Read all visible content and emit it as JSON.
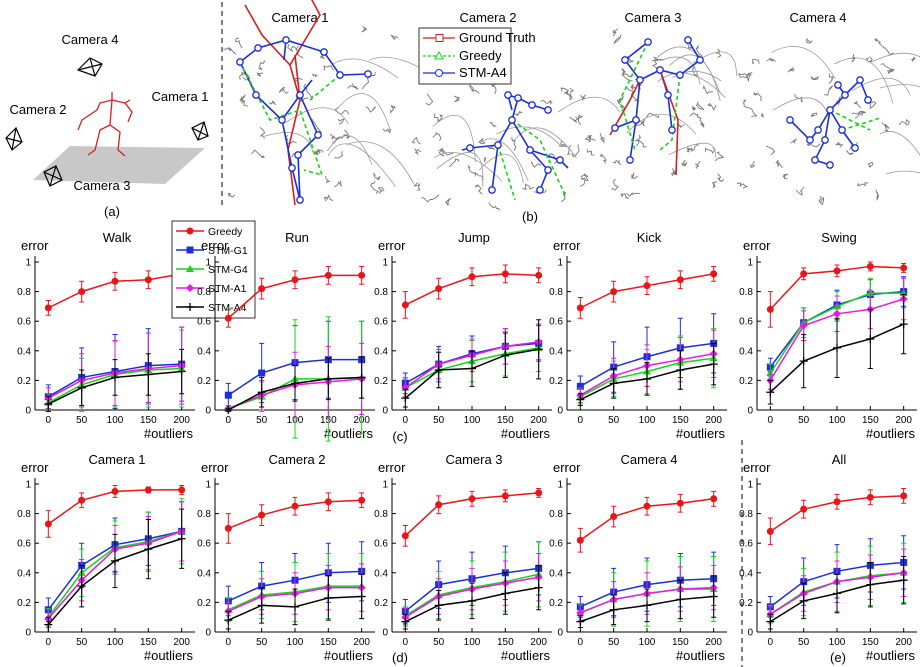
{
  "illustration": {
    "panel_a": {
      "cameras": [
        "Camera 4",
        "Camera 2",
        "Camera 1",
        "Camera 3"
      ],
      "label": "(a)"
    },
    "panel_b": {
      "titles": [
        "Camera 1",
        "Camera 2",
        "Camera 3",
        "Camera 4"
      ],
      "legend": [
        "Ground Truth",
        "Greedy",
        "STM-A4"
      ],
      "label": "(b)"
    }
  },
  "panel_labels": [
    "(c)",
    "(d)",
    "(e)"
  ],
  "chart_data": [
    {
      "type": "line",
      "title": "Walk",
      "ylabel": "error",
      "xlabel": "#outliers",
      "x": [
        0,
        50,
        100,
        150,
        200
      ],
      "xlim": [
        -20,
        220
      ],
      "ylim": [
        0,
        1
      ],
      "xticks": [
        0,
        50,
        100,
        150,
        200
      ],
      "yticks": [
        0,
        0.2,
        0.4,
        0.6,
        0.8,
        1
      ],
      "series": [
        {
          "name": "Greedy",
          "color": "#e8161b",
          "marker": "circle",
          "values": [
            0.69,
            0.8,
            0.87,
            0.88,
            0.92
          ],
          "errors": [
            0.05,
            0.07,
            0.06,
            0.06,
            0.06
          ]
        },
        {
          "name": "STM-G1",
          "color": "#1a2fd6",
          "marker": "square",
          "values": [
            0.09,
            0.22,
            0.26,
            0.3,
            0.31
          ],
          "errors": [
            0.08,
            0.2,
            0.25,
            0.25,
            0.25
          ]
        },
        {
          "name": "STM-G4",
          "color": "#17d417",
          "marker": "triangle",
          "values": [
            0.05,
            0.17,
            0.24,
            0.27,
            0.28
          ],
          "errors": [
            0.06,
            0.18,
            0.22,
            0.25,
            0.26
          ]
        },
        {
          "name": "STM-A1",
          "color": "#e619e6",
          "marker": "diamond",
          "values": [
            0.08,
            0.2,
            0.25,
            0.28,
            0.3
          ],
          "errors": [
            0.07,
            0.18,
            0.22,
            0.24,
            0.26
          ]
        },
        {
          "name": "STM-A4",
          "color": "#000000",
          "marker": "plus",
          "values": [
            0.04,
            0.15,
            0.22,
            0.24,
            0.26
          ],
          "errors": [
            0.05,
            0.12,
            0.12,
            0.14,
            0.15
          ]
        }
      ]
    },
    {
      "type": "line",
      "title": "Run",
      "ylabel": "error",
      "xlabel": "#outliers",
      "x": [
        0,
        50,
        100,
        150,
        200
      ],
      "xlim": [
        -20,
        220
      ],
      "ylim": [
        0,
        1
      ],
      "xticks": [
        0,
        50,
        100,
        150,
        200
      ],
      "yticks": [
        0,
        0.2,
        0.4,
        0.6,
        0.8,
        1
      ],
      "series": [
        {
          "values": [
            0.62,
            0.82,
            0.88,
            0.91,
            0.91
          ],
          "errors": [
            0.06,
            0.07,
            0.06,
            0.06,
            0.06
          ]
        },
        {
          "values": [
            0.1,
            0.25,
            0.32,
            0.34,
            0.34
          ],
          "errors": [
            0.08,
            0.2,
            0.25,
            0.26,
            0.26
          ]
        },
        {
          "values": [
            0.01,
            0.09,
            0.21,
            0.21,
            0.22
          ],
          "errors": [
            0.02,
            0.1,
            0.4,
            0.42,
            0.38
          ]
        },
        {
          "values": [
            0.01,
            0.1,
            0.17,
            0.19,
            0.21
          ],
          "errors": [
            0.02,
            0.1,
            0.22,
            0.24,
            0.24
          ]
        },
        {
          "values": [
            0,
            0.12,
            0.18,
            0.21,
            0.22
          ],
          "errors": [
            0.01,
            0.1,
            0.12,
            0.14,
            0.14
          ]
        }
      ]
    },
    {
      "type": "line",
      "title": "Jump",
      "ylabel": "error",
      "xlabel": "#outliers",
      "x": [
        0,
        50,
        100,
        150,
        200
      ],
      "xlim": [
        -20,
        220
      ],
      "ylim": [
        0,
        1
      ],
      "xticks": [
        0,
        50,
        100,
        150,
        200
      ],
      "yticks": [
        0,
        0.2,
        0.4,
        0.6,
        0.8,
        1
      ],
      "series": [
        {
          "values": [
            0.71,
            0.82,
            0.9,
            0.92,
            0.91
          ],
          "errors": [
            0.09,
            0.07,
            0.06,
            0.06,
            0.05
          ]
        },
        {
          "values": [
            0.18,
            0.31,
            0.38,
            0.43,
            0.45
          ],
          "errors": [
            0.07,
            0.12,
            0.12,
            0.12,
            0.12
          ]
        },
        {
          "values": [
            0.15,
            0.27,
            0.33,
            0.38,
            0.42
          ],
          "errors": [
            0.07,
            0.12,
            0.14,
            0.15,
            0.16
          ]
        },
        {
          "values": [
            0.15,
            0.31,
            0.37,
            0.43,
            0.46
          ],
          "errors": [
            0.06,
            0.1,
            0.11,
            0.12,
            0.12
          ]
        },
        {
          "values": [
            0.08,
            0.27,
            0.28,
            0.37,
            0.41
          ],
          "errors": [
            0.06,
            0.12,
            0.12,
            0.15,
            0.2
          ]
        }
      ]
    },
    {
      "type": "line",
      "title": "Kick",
      "ylabel": "error",
      "xlabel": "#outliers",
      "x": [
        0,
        50,
        100,
        150,
        200
      ],
      "xlim": [
        -20,
        220
      ],
      "ylim": [
        0,
        1
      ],
      "xticks": [
        0,
        50,
        100,
        150,
        200
      ],
      "yticks": [
        0,
        0.2,
        0.4,
        0.6,
        0.8,
        1
      ],
      "series": [
        {
          "values": [
            0.69,
            0.8,
            0.84,
            0.88,
            0.92
          ],
          "errors": [
            0.07,
            0.07,
            0.06,
            0.06,
            0.05
          ]
        },
        {
          "values": [
            0.16,
            0.29,
            0.36,
            0.42,
            0.45
          ],
          "errors": [
            0.07,
            0.17,
            0.2,
            0.2,
            0.2
          ]
        },
        {
          "values": [
            0.09,
            0.21,
            0.26,
            0.32,
            0.35
          ],
          "errors": [
            0.05,
            0.12,
            0.15,
            0.18,
            0.2
          ]
        },
        {
          "values": [
            0.1,
            0.23,
            0.3,
            0.34,
            0.38
          ],
          "errors": [
            0.05,
            0.12,
            0.14,
            0.15,
            0.16
          ]
        },
        {
          "values": [
            0.07,
            0.18,
            0.21,
            0.27,
            0.31
          ],
          "errors": [
            0.04,
            0.1,
            0.11,
            0.13,
            0.14
          ]
        }
      ]
    },
    {
      "type": "line",
      "title": "Swing",
      "ylabel": "error",
      "xlabel": "#outliers",
      "x": [
        0,
        50,
        100,
        150,
        200
      ],
      "xlim": [
        -20,
        220
      ],
      "ylim": [
        0,
        1
      ],
      "xticks": [
        0,
        50,
        100,
        150,
        200
      ],
      "yticks": [
        0,
        0.2,
        0.4,
        0.6,
        0.8,
        1
      ],
      "series": [
        {
          "values": [
            0.68,
            0.92,
            0.94,
            0.97,
            0.96
          ],
          "errors": [
            0.12,
            0.04,
            0.04,
            0.03,
            0.03
          ]
        },
        {
          "values": [
            0.29,
            0.59,
            0.71,
            0.78,
            0.8
          ],
          "errors": [
            0.06,
            0.1,
            0.1,
            0.1,
            0.1
          ]
        },
        {
          "values": [
            0.25,
            0.59,
            0.7,
            0.79,
            0.79
          ],
          "errors": [
            0.06,
            0.1,
            0.1,
            0.1,
            0.1
          ]
        },
        {
          "values": [
            0.2,
            0.57,
            0.65,
            0.68,
            0.75
          ],
          "errors": [
            0.06,
            0.1,
            0.12,
            0.13,
            0.14
          ]
        },
        {
          "values": [
            0.12,
            0.33,
            0.42,
            0.48,
            0.58
          ],
          "errors": [
            0.08,
            0.18,
            0.2,
            0.2,
            0.2
          ]
        }
      ]
    },
    {
      "type": "line",
      "title": "Camera 1",
      "ylabel": "error",
      "xlabel": "#outliers",
      "x": [
        0,
        50,
        100,
        150,
        200
      ],
      "xlim": [
        -20,
        220
      ],
      "ylim": [
        0,
        1
      ],
      "xticks": [
        0,
        50,
        100,
        150,
        200
      ],
      "yticks": [
        0,
        0.2,
        0.4,
        0.6,
        0.8,
        1
      ],
      "series": [
        {
          "values": [
            0.73,
            0.89,
            0.95,
            0.96,
            0.96
          ],
          "errors": [
            0.09,
            0.05,
            0.04,
            0.02,
            0.03
          ]
        },
        {
          "values": [
            0.15,
            0.45,
            0.59,
            0.63,
            0.68
          ],
          "errors": [
            0.08,
            0.15,
            0.18,
            0.18,
            0.2
          ]
        },
        {
          "values": [
            0.1,
            0.4,
            0.57,
            0.61,
            0.68
          ],
          "errors": [
            0.06,
            0.16,
            0.18,
            0.2,
            0.22
          ]
        },
        {
          "values": [
            0.09,
            0.35,
            0.56,
            0.6,
            0.68
          ],
          "errors": [
            0.06,
            0.14,
            0.16,
            0.18,
            0.2
          ]
        },
        {
          "values": [
            0.05,
            0.31,
            0.48,
            0.56,
            0.63
          ],
          "errors": [
            0.05,
            0.14,
            0.18,
            0.2,
            0.2
          ]
        }
      ]
    },
    {
      "type": "line",
      "title": "Camera 2",
      "ylabel": "error",
      "xlabel": "#outliers",
      "x": [
        0,
        50,
        100,
        150,
        200
      ],
      "xlim": [
        -20,
        220
      ],
      "ylim": [
        0,
        1
      ],
      "xticks": [
        0,
        50,
        100,
        150,
        200
      ],
      "yticks": [
        0,
        0.2,
        0.4,
        0.6,
        0.8,
        1
      ],
      "series": [
        {
          "values": [
            0.7,
            0.79,
            0.85,
            0.88,
            0.89
          ],
          "errors": [
            0.1,
            0.07,
            0.06,
            0.06,
            0.05
          ]
        },
        {
          "values": [
            0.21,
            0.31,
            0.35,
            0.4,
            0.41
          ],
          "errors": [
            0.1,
            0.16,
            0.18,
            0.2,
            0.2
          ]
        },
        {
          "values": [
            0.15,
            0.25,
            0.27,
            0.31,
            0.31
          ],
          "errors": [
            0.08,
            0.16,
            0.2,
            0.22,
            0.22
          ]
        },
        {
          "values": [
            0.14,
            0.24,
            0.26,
            0.3,
            0.3
          ],
          "errors": [
            0.06,
            0.12,
            0.14,
            0.15,
            0.16
          ]
        },
        {
          "values": [
            0.08,
            0.18,
            0.17,
            0.23,
            0.24
          ],
          "errors": [
            0.06,
            0.12,
            0.12,
            0.15,
            0.15
          ]
        }
      ]
    },
    {
      "type": "line",
      "title": "Camera 3",
      "ylabel": "error",
      "xlabel": "#outliers",
      "x": [
        0,
        50,
        100,
        150,
        200
      ],
      "xlim": [
        -20,
        220
      ],
      "ylim": [
        0,
        1
      ],
      "xticks": [
        0,
        50,
        100,
        150,
        200
      ],
      "yticks": [
        0,
        0.2,
        0.4,
        0.6,
        0.8,
        1
      ],
      "series": [
        {
          "values": [
            0.65,
            0.86,
            0.9,
            0.92,
            0.94
          ],
          "errors": [
            0.07,
            0.06,
            0.05,
            0.04,
            0.03
          ]
        },
        {
          "values": [
            0.14,
            0.32,
            0.36,
            0.4,
            0.43
          ],
          "errors": [
            0.08,
            0.16,
            0.18,
            0.18,
            0.18
          ]
        },
        {
          "values": [
            0.11,
            0.25,
            0.3,
            0.34,
            0.39
          ],
          "errors": [
            0.06,
            0.16,
            0.18,
            0.2,
            0.22
          ]
        },
        {
          "values": [
            0.1,
            0.24,
            0.29,
            0.33,
            0.37
          ],
          "errors": [
            0.06,
            0.12,
            0.14,
            0.15,
            0.16
          ]
        },
        {
          "values": [
            0.07,
            0.18,
            0.21,
            0.26,
            0.3
          ],
          "errors": [
            0.05,
            0.1,
            0.12,
            0.14,
            0.15
          ]
        }
      ]
    },
    {
      "type": "line",
      "title": "Camera 4",
      "ylabel": "error",
      "xlabel": "#outliers",
      "x": [
        0,
        50,
        100,
        150,
        200
      ],
      "xlim": [
        -20,
        220
      ],
      "ylim": [
        0,
        1
      ],
      "xticks": [
        0,
        50,
        100,
        150,
        200
      ],
      "yticks": [
        0,
        0.2,
        0.4,
        0.6,
        0.8,
        1
      ],
      "series": [
        {
          "values": [
            0.62,
            0.78,
            0.85,
            0.87,
            0.9
          ],
          "errors": [
            0.08,
            0.07,
            0.06,
            0.06,
            0.05
          ]
        },
        {
          "values": [
            0.17,
            0.27,
            0.32,
            0.35,
            0.36
          ],
          "errors": [
            0.07,
            0.16,
            0.18,
            0.18,
            0.18
          ]
        },
        {
          "values": [
            0.13,
            0.22,
            0.26,
            0.29,
            0.29
          ],
          "errors": [
            0.06,
            0.18,
            0.22,
            0.22,
            0.22
          ]
        },
        {
          "values": [
            0.13,
            0.22,
            0.26,
            0.29,
            0.3
          ],
          "errors": [
            0.05,
            0.12,
            0.14,
            0.15,
            0.15
          ]
        },
        {
          "values": [
            0.07,
            0.15,
            0.18,
            0.22,
            0.24
          ],
          "errors": [
            0.04,
            0.1,
            0.11,
            0.13,
            0.14
          ]
        }
      ]
    },
    {
      "type": "line",
      "title": "All",
      "ylabel": "error",
      "xlabel": "#outliers",
      "x": [
        0,
        50,
        100,
        150,
        200
      ],
      "xlim": [
        -20,
        220
      ],
      "ylim": [
        0,
        1
      ],
      "xticks": [
        0,
        50,
        100,
        150,
        200
      ],
      "yticks": [
        0,
        0.2,
        0.4,
        0.6,
        0.8,
        1
      ],
      "series": [
        {
          "values": [
            0.68,
            0.83,
            0.88,
            0.91,
            0.92
          ],
          "errors": [
            0.09,
            0.06,
            0.05,
            0.05,
            0.05
          ]
        },
        {
          "values": [
            0.17,
            0.34,
            0.41,
            0.45,
            0.47
          ],
          "errors": [
            0.07,
            0.16,
            0.18,
            0.18,
            0.18
          ]
        },
        {
          "values": [
            0.12,
            0.27,
            0.34,
            0.38,
            0.4
          ],
          "errors": [
            0.06,
            0.16,
            0.2,
            0.2,
            0.2
          ]
        },
        {
          "values": [
            0.12,
            0.26,
            0.34,
            0.37,
            0.4
          ],
          "errors": [
            0.05,
            0.12,
            0.14,
            0.15,
            0.16
          ]
        },
        {
          "values": [
            0.07,
            0.21,
            0.26,
            0.32,
            0.35
          ],
          "errors": [
            0.05,
            0.12,
            0.13,
            0.15,
            0.16
          ]
        }
      ]
    }
  ]
}
